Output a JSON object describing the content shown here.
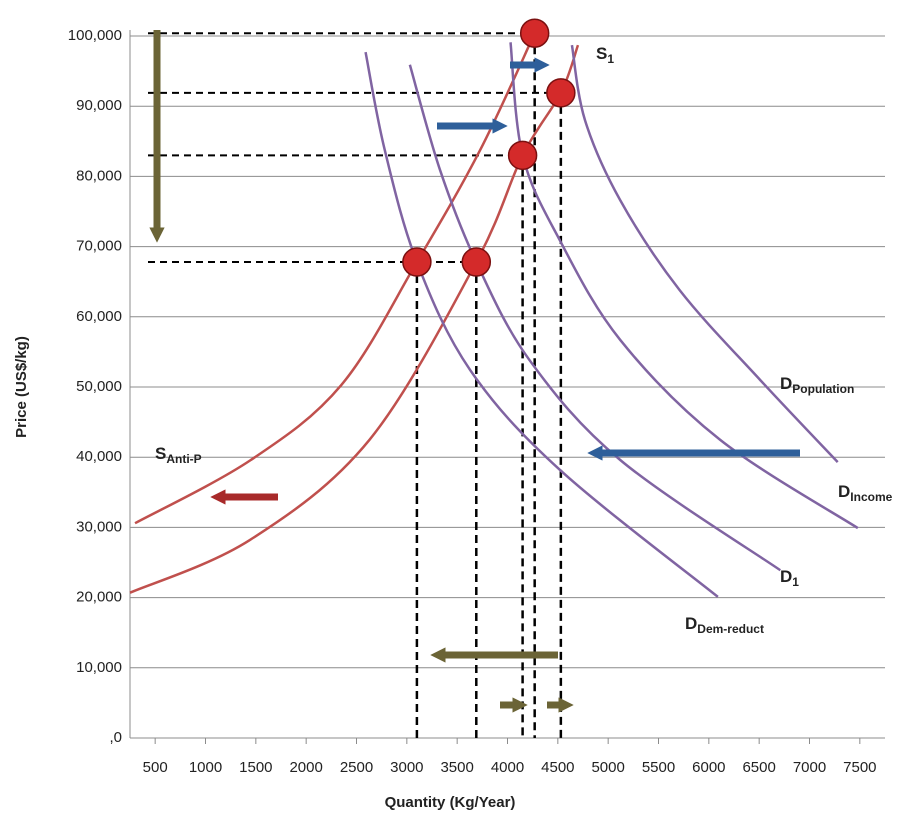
{
  "chart_data": {
    "type": "line",
    "x_label": "Quantity (Kg/Year)",
    "y_label": "Price (US$/kg)",
    "xlim": [
      250,
      7750
    ],
    "xticks": [
      500,
      1000,
      1500,
      2000,
      2500,
      3000,
      3500,
      4000,
      4500,
      5000,
      5500,
      6000,
      6500,
      7000,
      7500
    ],
    "ylim": [
      0,
      100000
    ],
    "yticks": [
      {
        "value": 0,
        "label": ",0"
      },
      {
        "value": 10000,
        "label": "10,000"
      },
      {
        "value": 20000,
        "label": "20,000"
      },
      {
        "value": 30000,
        "label": "30,000"
      },
      {
        "value": 40000,
        "label": "40,000"
      },
      {
        "value": 50000,
        "label": "50,000"
      },
      {
        "value": 60000,
        "label": "60,000"
      },
      {
        "value": 70000,
        "label": "70,000"
      },
      {
        "value": 80000,
        "label": "80,000"
      },
      {
        "value": 90000,
        "label": "90,000"
      },
      {
        "value": 100000,
        "label": "100,000"
      }
    ],
    "grid": true,
    "series": [
      {
        "name": "S",
        "sub": "Anti-P",
        "color": "#c0504d",
        "x": [
          300,
          1450,
          2350,
          3100,
          3730,
          4270
        ],
        "values": [
          30600,
          39600,
          50300,
          67800,
          83800,
          100400
        ]
      },
      {
        "name": "S",
        "sub": "1",
        "color": "#c0504d",
        "x": [
          250,
          1440,
          2630,
          3690,
          4150,
          4530,
          4700
        ],
        "values": [
          20700,
          28200,
          42500,
          67800,
          83000,
          91900,
          98700
        ]
      },
      {
        "name": "D",
        "sub": "Dem-reduct",
        "color": "#8064a2",
        "x": [
          2590,
          2780,
          3100,
          3630,
          4520,
          6090
        ],
        "values": [
          97700,
          83800,
          67800,
          52400,
          38200,
          20100
        ]
      },
      {
        "name": "D",
        "sub": "1",
        "color": "#8064a2",
        "x": [
          3030,
          3330,
          3690,
          4220,
          5120,
          6710
        ],
        "values": [
          95900,
          80900,
          67800,
          53800,
          39600,
          23900
        ]
      },
      {
        "name": "D",
        "sub": "Income",
        "color": "#8064a2",
        "x": [
          4030,
          4150,
          4520,
          5120,
          6110,
          7480
        ],
        "values": [
          99100,
          83000,
          70900,
          56700,
          42500,
          29900
        ]
      },
      {
        "name": "D",
        "sub": "Population",
        "color": "#8064a2",
        "x": [
          4640,
          4770,
          5120,
          5710,
          6510,
          7280
        ],
        "values": [
          98700,
          88000,
          76600,
          63800,
          51000,
          39300
        ]
      }
    ],
    "points": {
      "color": "#d42a2a",
      "x": [
        4270,
        4530,
        4150,
        3100,
        3690
      ],
      "values": [
        100400,
        91900,
        83000,
        67800,
        67800
      ]
    }
  }
}
